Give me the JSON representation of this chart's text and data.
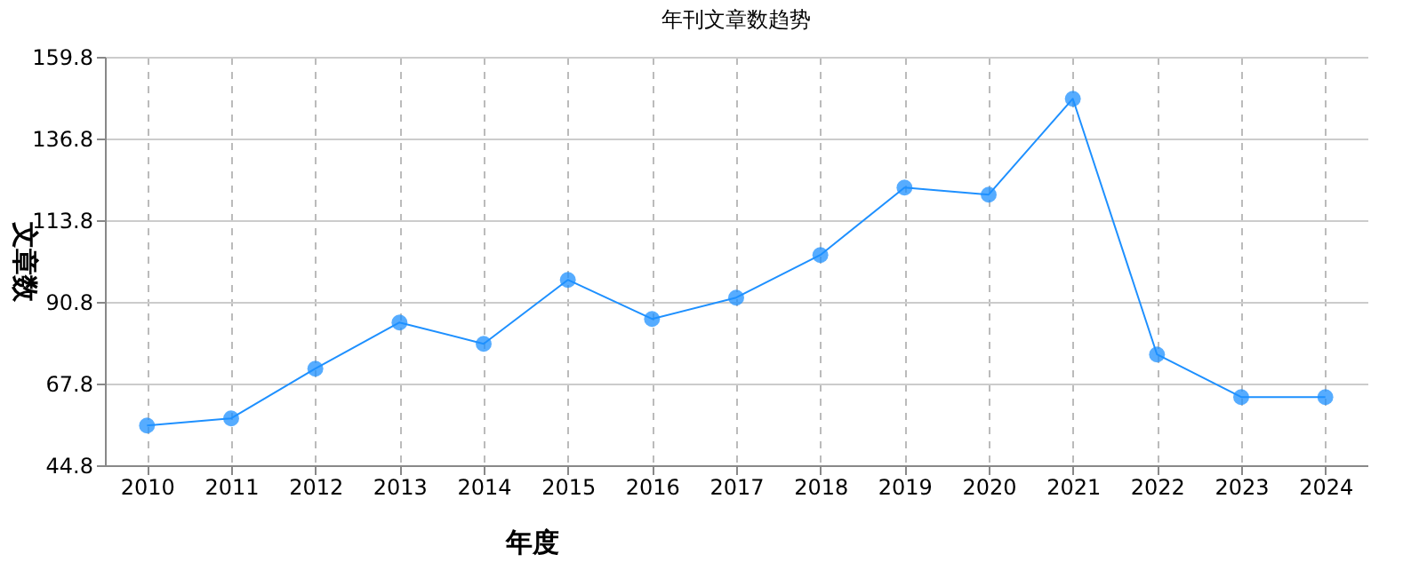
{
  "chart_data": {
    "type": "line",
    "title": "年刊文章数趋势",
    "xlabel": "年度",
    "ylabel": "文章数",
    "categories": [
      "2010",
      "2011",
      "2012",
      "2013",
      "2014",
      "2015",
      "2016",
      "2017",
      "2018",
      "2019",
      "2020",
      "2021",
      "2022",
      "2023",
      "2024"
    ],
    "series": [
      {
        "color": "#1e90ff",
        "values": [
          56,
          58,
          72,
          85,
          79,
          97,
          86,
          92,
          104,
          123,
          121,
          148,
          76,
          64,
          64
        ]
      }
    ],
    "ylim": [
      44.8,
      159.8
    ],
    "yticks": [
      44.8,
      67.8,
      90.8,
      113.8,
      136.8,
      159.8
    ],
    "grid": true,
    "marker": "circle",
    "line_style": "solid"
  }
}
